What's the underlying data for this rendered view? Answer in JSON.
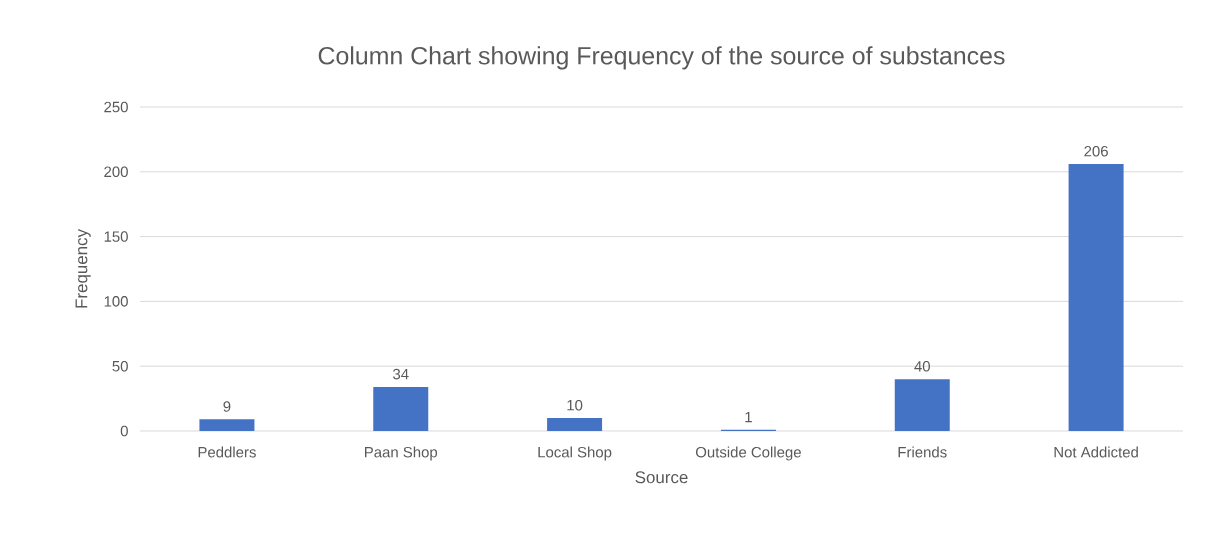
{
  "chart_data": {
    "type": "bar",
    "title": "Column Chart showing Frequency of the source of substances",
    "xlabel": "Source",
    "ylabel": "Frequency",
    "categories": [
      "Peddlers",
      "Paan Shop",
      "Local Shop",
      "Outside College",
      "Friends",
      "Not Addicted"
    ],
    "values": [
      9,
      34,
      10,
      1,
      40,
      206
    ],
    "color": "#4472c4",
    "ylim": [
      0,
      250
    ],
    "yticks": [
      0,
      50,
      100,
      150,
      200,
      250
    ],
    "grid": "y",
    "data_labels": true
  }
}
